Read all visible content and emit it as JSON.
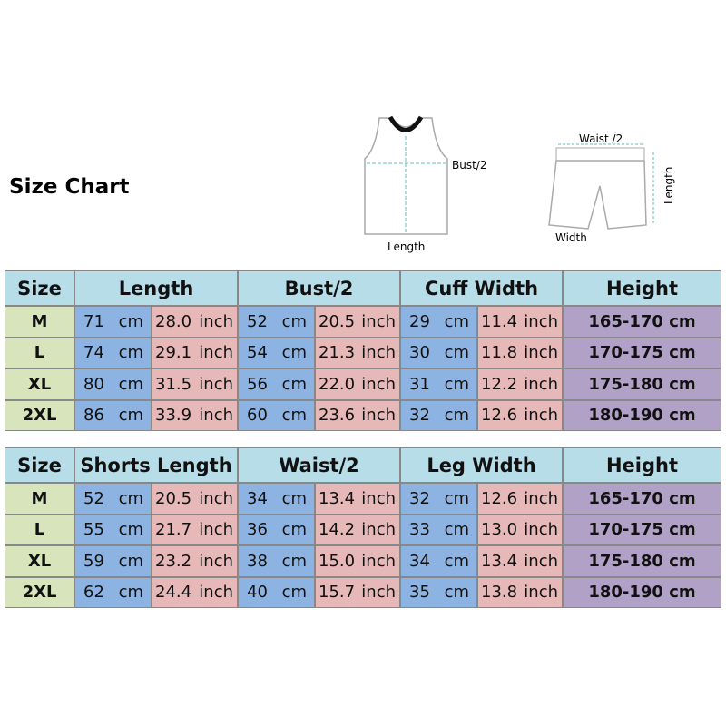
{
  "title": "Size Chart",
  "jersey_diagram": {
    "bust_label": "Bust/2",
    "length_label": "Length"
  },
  "shorts_diagram": {
    "waist_label": "Waist /2",
    "length_label": "Length",
    "width_label": "Width"
  },
  "tables": [
    {
      "header": [
        "Size",
        "Length",
        "Bust/2",
        "Cuff Width",
        "Height"
      ],
      "rows": [
        [
          "M",
          "71",
          "cm",
          "28.0",
          "inch",
          "52",
          "cm",
          "20.5",
          "inch",
          "29",
          "cm",
          "11.4",
          "inch",
          "165-170 cm"
        ],
        [
          "L",
          "74",
          "cm",
          "29.1",
          "inch",
          "54",
          "cm",
          "21.3",
          "inch",
          "30",
          "cm",
          "11.8",
          "inch",
          "170-175 cm"
        ],
        [
          "XL",
          "80",
          "cm",
          "31.5",
          "inch",
          "56",
          "cm",
          "22.0",
          "inch",
          "31",
          "cm",
          "12.2",
          "inch",
          "175-180 cm"
        ],
        [
          "2XL",
          "86",
          "cm",
          "33.9",
          "inch",
          "60",
          "cm",
          "23.6",
          "inch",
          "32",
          "cm",
          "12.6",
          "inch",
          "180-190 cm"
        ]
      ]
    },
    {
      "header": [
        "Size",
        "Shorts Length",
        "Waist/2",
        "Leg Width",
        "Height"
      ],
      "rows": [
        [
          "M",
          "52",
          "cm",
          "20.5",
          "inch",
          "34",
          "cm",
          "13.4",
          "inch",
          "32",
          "cm",
          "12.6",
          "inch",
          "165-170 cm"
        ],
        [
          "L",
          "55",
          "cm",
          "21.7",
          "inch",
          "36",
          "cm",
          "14.2",
          "inch",
          "33",
          "cm",
          "13.0",
          "inch",
          "170-175 cm"
        ],
        [
          "XL",
          "59",
          "cm",
          "23.2",
          "inch",
          "38",
          "cm",
          "15.0",
          "inch",
          "34",
          "cm",
          "13.4",
          "inch",
          "175-180 cm"
        ],
        [
          "2XL",
          "62",
          "cm",
          "24.4",
          "inch",
          "40",
          "cm",
          "15.7",
          "inch",
          "35",
          "cm",
          "13.8",
          "inch",
          "180-190 cm"
        ]
      ]
    }
  ]
}
